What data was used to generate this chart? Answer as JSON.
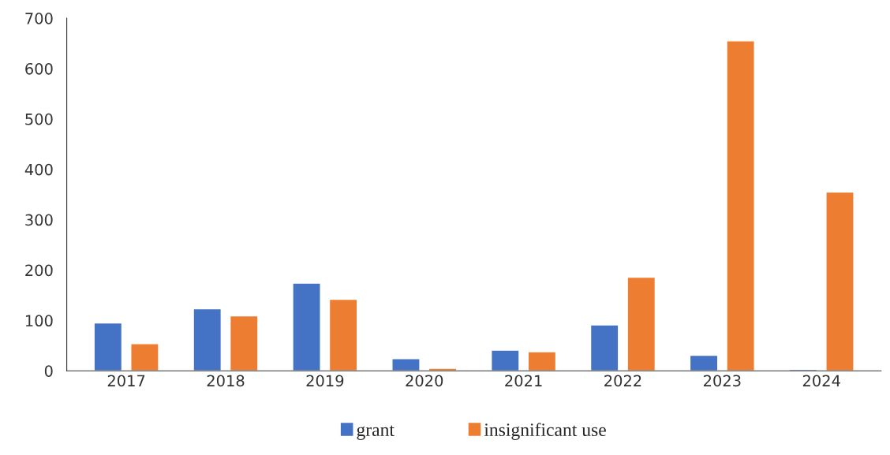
{
  "chart_data": {
    "type": "bar",
    "categories": [
      "2017",
      "2018",
      "2019",
      "2020",
      "2021",
      "2022",
      "2023",
      "2024"
    ],
    "series": [
      {
        "name": "grant",
        "color": "#4472c4",
        "values": [
          95,
          123,
          174,
          24,
          41,
          91,
          31,
          3
        ]
      },
      {
        "name": "insignificant use",
        "color": "#ed7d31",
        "values": [
          54,
          109,
          142,
          5,
          38,
          186,
          655,
          355
        ]
      }
    ],
    "ylim": [
      0,
      700
    ],
    "yticks": [
      0,
      100,
      200,
      300,
      400,
      500,
      600,
      700
    ],
    "grid": false,
    "legend": "bottom"
  }
}
